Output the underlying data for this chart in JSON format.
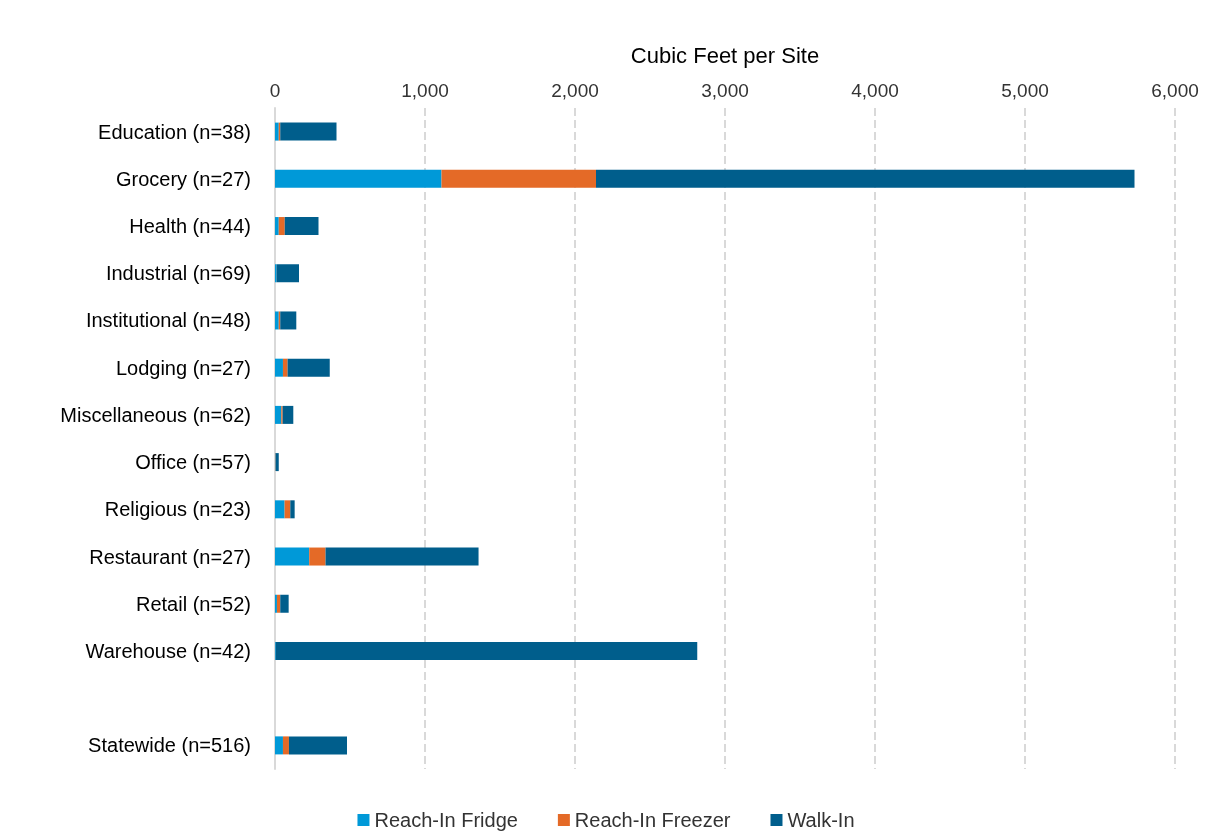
{
  "chart_data": {
    "type": "bar",
    "orientation": "horizontal",
    "stacked": true,
    "xlabel": "Cubic Feet per Site",
    "categories": [
      "Education (n=38)",
      "Grocery (n=27)",
      "Health (n=44)",
      "Industrial (n=69)",
      "Institutional (n=48)",
      "Lodging (n=27)",
      "Miscellaneous (n=62)",
      "Office (n=57)",
      "Religious (n=23)",
      "Restaurant (n=27)",
      "Retail (n=52)",
      "Warehouse (n=42)",
      null,
      "Statewide (n=516)"
    ],
    "series": [
      {
        "name": "Reach-In Fridge",
        "color": "#0099d8",
        "values": [
          25,
          1110,
          25,
          10,
          25,
          53,
          42,
          3,
          64,
          228,
          13,
          5,
          null,
          53
        ]
      },
      {
        "name": "Reach-In Freezer",
        "color": "#e46a27",
        "values": [
          10,
          1030,
          40,
          0,
          10,
          31,
          9,
          2,
          38,
          109,
          22,
          0,
          null,
          40
        ]
      },
      {
        "name": "Walk-In",
        "color": "#005e8c",
        "values": [
          375,
          3590,
          225,
          150,
          107,
          281,
          71,
          20,
          29,
          1020,
          56,
          2810,
          null,
          387
        ]
      }
    ],
    "xlim": [
      0,
      6000
    ],
    "xticks": [
      0,
      {
        "value": 1000,
        "label": "1,000"
      },
      {
        "value": 2000,
        "label": "2,000"
      },
      {
        "value": 3000,
        "label": "3,000"
      },
      {
        "value": 4000,
        "label": "4,000"
      },
      {
        "value": 5000,
        "label": "5,000"
      },
      {
        "value": 6000,
        "label": "6,000"
      }
    ],
    "grid": "x",
    "legend": "bottom"
  }
}
